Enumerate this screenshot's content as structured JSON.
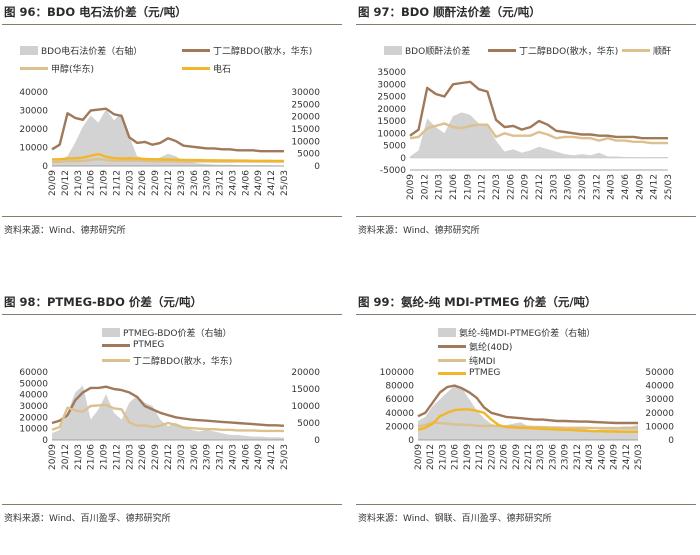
{
  "colors": {
    "area": "#d3d3d3",
    "brown": "#a0785a",
    "tan": "#dcc08e",
    "orange": "#f2b62a"
  },
  "chart_data": [
    {
      "type": "area",
      "title": "图 96：BDO 电石法价差（元/吨）",
      "source": "资料来源：Wind、德邦研究所",
      "x_tick_labels": [
        "20/09",
        "20/12",
        "21/03",
        "21/06",
        "21/09",
        "21/12",
        "22/03",
        "22/06",
        "22/09",
        "22/12",
        "23/03",
        "23/06",
        "23/09",
        "23/12",
        "24/03",
        "24/06",
        "24/09",
        "24/12",
        "25/03"
      ],
      "y_left": {
        "ticks": [
          0,
          10000,
          20000,
          30000,
          40000
        ],
        "ylim": [
          0,
          40000
        ]
      },
      "y_right": {
        "ticks": [
          0,
          5000,
          10000,
          15000,
          20000,
          25000,
          30000
        ],
        "ylim": [
          0,
          30000
        ]
      },
      "series": [
        {
          "name": "BDO电石法价差（右轴）",
          "style": "area",
          "axis": "right",
          "values": [
            1500,
            2500,
            4000,
            9500,
            16000,
            20500,
            17500,
            23000,
            18500,
            21500,
            12000,
            4000,
            3000,
            2000,
            3500,
            5000,
            4000,
            2000,
            1500,
            1000,
            800,
            600,
            500,
            500,
            400,
            300,
            300,
            300,
            300,
            200,
            200
          ]
        },
        {
          "name": "丁二醇BDO(散水，华东)",
          "style": "line",
          "color": "brown",
          "axis": "left",
          "values": [
            9000,
            11500,
            28500,
            26000,
            25000,
            30000,
            30500,
            31000,
            28000,
            27000,
            15500,
            12500,
            13000,
            11500,
            12500,
            15000,
            13500,
            11000,
            10500,
            10000,
            9500,
            9500,
            9000,
            9000,
            8500,
            8500,
            8500,
            8000,
            8000,
            8000,
            8000
          ]
        },
        {
          "name": "甲醇(华东)",
          "style": "line",
          "color": "tan",
          "axis": "left",
          "values": [
            2200,
            2300,
            2600,
            2700,
            2800,
            3200,
            3800,
            3300,
            2700,
            2800,
            3000,
            2900,
            2700,
            2600,
            2500,
            2600,
            2500,
            2400,
            2400,
            2500,
            2500,
            2450,
            2400,
            2400,
            2500,
            2500,
            2450,
            2400,
            2400,
            2450,
            2400
          ]
        },
        {
          "name": "电石",
          "style": "line",
          "color": "orange",
          "axis": "left",
          "values": [
            3500,
            3700,
            4000,
            4200,
            4500,
            5500,
            6500,
            5000,
            4200,
            4000,
            4200,
            4000,
            3800,
            3700,
            3600,
            3500,
            3400,
            3300,
            3200,
            3200,
            3100,
            3100,
            3000,
            3000,
            2900,
            2900,
            2800,
            2800,
            2800,
            2700,
            2700
          ]
        }
      ]
    },
    {
      "type": "area",
      "title": "图 97：BDO 顺酐法价差（元/吨）",
      "source": "资料来源：Wind、德邦研究所",
      "x_tick_labels": [
        "20/09",
        "20/12",
        "21/03",
        "21/06",
        "21/09",
        "21/12",
        "22/03",
        "22/06",
        "22/09",
        "22/12",
        "23/03",
        "23/06",
        "23/09",
        "23/12",
        "24/03",
        "24/06",
        "24/09",
        "24/12",
        "25/03"
      ],
      "y_left": {
        "ticks": [
          -5000,
          0,
          5000,
          10000,
          15000,
          20000,
          25000,
          30000,
          35000
        ],
        "ylim": [
          -5000,
          35000
        ]
      },
      "series": [
        {
          "name": "BDO顺酐法价差",
          "style": "area",
          "values": [
            500,
            3000,
            16000,
            12500,
            10000,
            17000,
            18500,
            17500,
            14000,
            13000,
            7000,
            2500,
            3500,
            2000,
            3000,
            4500,
            3500,
            2500,
            1500,
            1000,
            1500,
            1000,
            2000,
            500,
            500,
            300,
            200,
            100,
            0,
            0,
            0
          ]
        },
        {
          "name": "丁二醇BDO(散水，华东)",
          "style": "line",
          "color": "brown",
          "values": [
            9000,
            11500,
            28500,
            26000,
            25000,
            30000,
            30500,
            31000,
            28000,
            27000,
            15500,
            12500,
            13000,
            11500,
            12500,
            15000,
            13500,
            11000,
            10500,
            10000,
            9500,
            9500,
            9000,
            9000,
            8500,
            8500,
            8500,
            8000,
            8000,
            8000,
            8000
          ]
        },
        {
          "name": "顺酐",
          "style": "line",
          "color": "tan",
          "values": [
            8000,
            8500,
            12000,
            13000,
            14000,
            12500,
            12000,
            13000,
            13500,
            13500,
            8500,
            10000,
            9000,
            9000,
            9000,
            10500,
            9500,
            8000,
            8500,
            8500,
            8000,
            8000,
            7000,
            8000,
            7000,
            7000,
            6500,
            6500,
            6000,
            6000,
            6000
          ]
        }
      ]
    },
    {
      "type": "area",
      "title": "图 98：PTMEG-BDO 价差（元/吨）",
      "source": "资料来源：Wind、百川盈孚、德邦研究所",
      "x_tick_labels": [
        "20/09",
        "20/12",
        "21/03",
        "21/06",
        "21/09",
        "21/12",
        "22/03",
        "22/06",
        "22/09",
        "22/12",
        "23/03",
        "23/06",
        "23/09",
        "23/12",
        "24/03",
        "24/06",
        "24/09",
        "24/12",
        "25/03"
      ],
      "y_left": {
        "ticks": [
          0,
          10000,
          20000,
          30000,
          40000,
          50000,
          60000
        ],
        "ylim": [
          0,
          60000
        ]
      },
      "y_right": {
        "ticks": [
          0,
          5000,
          10000,
          15000,
          20000
        ],
        "ylim": [
          0,
          20000
        ]
      },
      "series": [
        {
          "name": "PTMEG-BDO价差（右轴）",
          "style": "area",
          "axis": "right",
          "values": [
            2000,
            3000,
            8000,
            14000,
            16000,
            6000,
            9000,
            13500,
            8000,
            6000,
            11000,
            13000,
            11000,
            10000,
            6000,
            4000,
            5000,
            4000,
            3000,
            2500,
            3000,
            2500,
            2000,
            1500,
            1500,
            1200,
            1000,
            1000,
            800,
            800,
            700
          ]
        },
        {
          "name": "PTMEG",
          "style": "line",
          "color": "brown",
          "axis": "left",
          "values": [
            15000,
            17000,
            22000,
            35000,
            42000,
            46000,
            46000,
            47000,
            45000,
            44000,
            42000,
            38000,
            30000,
            27000,
            24000,
            22000,
            20000,
            19000,
            18000,
            17500,
            17000,
            16500,
            16000,
            15500,
            15000,
            14500,
            14000,
            13500,
            13000,
            13000,
            12500
          ]
        },
        {
          "name": "丁二醇BDO(散水，华东)",
          "style": "line",
          "color": "tan",
          "axis": "left",
          "values": [
            9000,
            11500,
            28500,
            26000,
            25000,
            30000,
            30500,
            31000,
            28000,
            27000,
            15500,
            12500,
            13000,
            11500,
            12500,
            15000,
            13500,
            11000,
            10500,
            10000,
            9500,
            9500,
            9000,
            9000,
            8500,
            8500,
            8500,
            8000,
            8000,
            8000,
            8000
          ]
        }
      ]
    },
    {
      "type": "area",
      "title": "图 99：氨纶-纯 MDI-PTMEG 价差（元/吨）",
      "source": "资料来源：Wind、钢联、百川盈孚、德邦研究所",
      "x_tick_labels": [
        "20/09",
        "20/12",
        "21/03",
        "21/06",
        "21/09",
        "21/12",
        "22/03",
        "22/06",
        "22/09",
        "22/12",
        "23/03",
        "23/06",
        "23/09",
        "23/12",
        "24/03",
        "24/06",
        "24/09",
        "24/12",
        "25/03"
      ],
      "y_left": {
        "ticks": [
          0,
          20000,
          40000,
          60000,
          80000,
          100000
        ],
        "ylim": [
          0,
          100000
        ]
      },
      "y_right": {
        "ticks": [
          0,
          10000,
          20000,
          30000,
          40000,
          50000
        ],
        "ylim": [
          0,
          50000
        ]
      },
      "series": [
        {
          "name": "氨纶-纯MDI-PTMEG价差（右轴）",
          "style": "area",
          "axis": "right",
          "values": [
            14000,
            17000,
            25000,
            30000,
            35000,
            40000,
            38000,
            30000,
            22000,
            16000,
            12000,
            10000,
            11000,
            12000,
            13000,
            10000,
            8000,
            9000,
            10000,
            9000,
            8000,
            8000,
            9000,
            8000,
            7000,
            8000,
            8000,
            9000,
            10000,
            10000,
            11000
          ]
        },
        {
          "name": "氨纶(40D)",
          "style": "line",
          "color": "brown",
          "axis": "left",
          "values": [
            35000,
            40000,
            55000,
            70000,
            78000,
            80000,
            76000,
            70000,
            62000,
            48000,
            40000,
            37000,
            34000,
            33000,
            32000,
            31000,
            30000,
            30000,
            29000,
            28000,
            28000,
            27500,
            27000,
            27000,
            26500,
            26000,
            25500,
            25000,
            25000,
            25000,
            25000
          ]
        },
        {
          "name": "纯MDI",
          "style": "line",
          "color": "tan",
          "axis": "left",
          "values": [
            20000,
            22000,
            26000,
            25000,
            24000,
            23000,
            22500,
            22000,
            21000,
            20500,
            21000,
            20500,
            20000,
            20000,
            19500,
            19500,
            19000,
            19000,
            18500,
            18500,
            18000,
            18000,
            18000,
            18000,
            17500,
            17500,
            17500,
            17500,
            17500,
            17500,
            17500
          ]
        },
        {
          "name": "PTMEG",
          "style": "line",
          "color": "orange",
          "axis": "left",
          "values": [
            15000,
            18000,
            24000,
            35000,
            40000,
            44000,
            45000,
            45000,
            43000,
            40000,
            30000,
            22000,
            19000,
            18500,
            18000,
            17500,
            17000,
            16500,
            16000,
            15500,
            15000,
            14500,
            14000,
            13500,
            13000,
            13000,
            12500,
            12500,
            12000,
            12000,
            12000
          ]
        }
      ]
    }
  ]
}
